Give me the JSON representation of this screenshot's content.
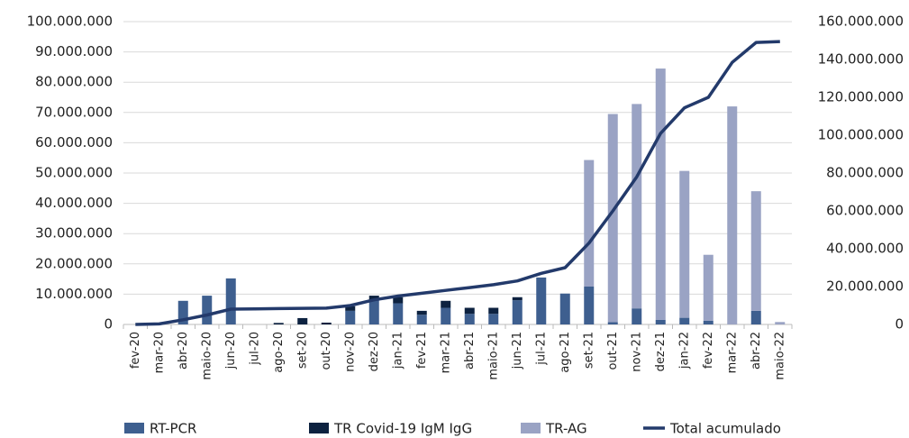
{
  "chart_data": {
    "type": "bar",
    "categories": [
      "fev-20",
      "mar-20",
      "abr-20",
      "maio-20",
      "jun-20",
      "jul-20",
      "ago-20",
      "set-20",
      "out-20",
      "nov-20",
      "dez-20",
      "jan-21",
      "fev-21",
      "mar-21",
      "abr-21",
      "maio-21",
      "jun-21",
      "jul-21",
      "ago-21",
      "set-21",
      "out-21",
      "nov-21",
      "dez-21",
      "jan-22",
      "fev-22",
      "mar-22",
      "abr-22",
      "maio-22"
    ],
    "stacked": true,
    "series": [
      {
        "name": "RT-PCR",
        "color": "#3e5f8f",
        "type": "bar",
        "values": [
          0,
          0,
          7800000,
          9500000,
          15200000,
          0,
          0,
          0,
          0,
          4500000,
          8000000,
          7000000,
          3200000,
          5500000,
          3500000,
          3500000,
          8000000,
          15500000,
          10200000,
          12500000,
          800000,
          5300000,
          1500000,
          2200000,
          1200000,
          0,
          4500000,
          0
        ]
      },
      {
        "name": "TR Covid-19 IgM IgG",
        "color": "#0d2240",
        "type": "bar",
        "values": [
          0,
          0,
          0,
          0,
          0,
          0,
          500000,
          2100000,
          600000,
          1500000,
          1500000,
          2000000,
          1300000,
          2300000,
          2000000,
          2000000,
          1000000,
          0,
          0,
          0,
          0,
          0,
          0,
          0,
          0,
          0,
          0,
          0
        ]
      },
      {
        "name": "TR-AG",
        "color": "#9aa3c4",
        "type": "bar",
        "values": [
          0,
          0,
          0,
          0,
          0,
          0,
          0,
          0,
          0,
          0,
          0,
          0,
          0,
          0,
          0,
          0,
          0,
          0,
          0,
          41800000,
          68700000,
          67500000,
          83000000,
          48500000,
          21800000,
          72000000,
          39500000,
          800000
        ]
      },
      {
        "name": "Total acumulado",
        "color": "#233a6b",
        "type": "line",
        "axis": "y2",
        "values": [
          0,
          300000,
          2500000,
          5000000,
          8100000,
          8200000,
          8400000,
          8500000,
          8600000,
          10000000,
          13000000,
          15000000,
          16500000,
          18000000,
          19500000,
          21000000,
          23000000,
          27000000,
          30000000,
          43000000,
          60000000,
          78000000,
          101000000,
          114500000,
          120000000,
          138500000,
          149000000,
          149500000
        ]
      }
    ],
    "ylim": [
      0,
      100000000
    ],
    "yticks": [
      0,
      {
        "value": 10000000,
        "label": "10.000.000"
      },
      {
        "value": 20000000,
        "label": "20.000.000"
      },
      {
        "value": 30000000,
        "label": "30.000.000"
      },
      {
        "value": 40000000,
        "label": "40.000.000"
      },
      {
        "value": 50000000,
        "label": "50.000.000"
      },
      {
        "value": 60000000,
        "label": "60.000.000"
      },
      {
        "value": 70000000,
        "label": "70.000.000"
      },
      {
        "value": 80000000,
        "label": "80.000.000"
      },
      {
        "value": 90000000,
        "label": "90.000.000"
      },
      {
        "value": 100000000,
        "label": "100.000.000"
      }
    ],
    "y2lim": [
      0,
      160000000
    ],
    "y2ticks": [
      0,
      {
        "value": 20000000,
        "label": "20.000.000"
      },
      {
        "value": 40000000,
        "label": "40.000.000"
      },
      {
        "value": 60000000,
        "label": "60.000.000"
      },
      {
        "value": 80000000,
        "label": "80.000.000"
      },
      {
        "value": 100000000,
        "label": "100.000.000"
      },
      {
        "value": 120000000,
        "label": "120.000.000"
      },
      {
        "value": 140000000,
        "label": "140.000.000"
      },
      {
        "value": 160000000,
        "label": "160.000.000"
      }
    ],
    "grid": true,
    "legend": "bottom"
  }
}
